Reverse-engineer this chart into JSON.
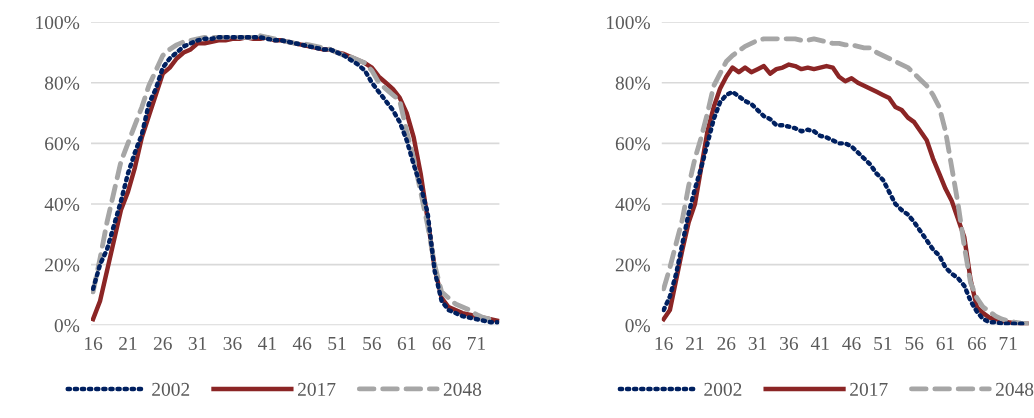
{
  "chart_data": [
    {
      "type": "line",
      "categories": [
        "16",
        null,
        null,
        null,
        null,
        "21",
        null,
        null,
        null,
        null,
        "26",
        null,
        null,
        null,
        null,
        "31",
        null,
        null,
        null,
        null,
        "36",
        null,
        null,
        null,
        null,
        "41",
        null,
        null,
        null,
        null,
        "46",
        null,
        null,
        null,
        null,
        "51",
        null,
        null,
        null,
        null,
        "56",
        null,
        null,
        null,
        null,
        "61",
        null,
        null,
        null,
        null,
        "66",
        null,
        null,
        null,
        null,
        "71",
        null,
        null,
        null
      ],
      "ylim": [
        0,
        100
      ],
      "yticks": [
        {
          "value": 0,
          "label": "0%"
        },
        {
          "value": 20,
          "label": "20%"
        },
        {
          "value": 40,
          "label": "40%"
        },
        {
          "value": 60,
          "label": "60%"
        },
        {
          "value": 80,
          "label": "80%"
        },
        {
          "value": 100,
          "label": "100%"
        }
      ],
      "grid": "y",
      "legend": "bottom",
      "series": [
        {
          "name": "2002",
          "color": "#002060",
          "line_style": "dotted",
          "values": [
            12,
            20,
            25,
            33,
            41,
            50,
            57,
            63,
            73,
            78,
            85,
            88,
            90,
            92,
            93,
            94,
            94.5,
            94.5,
            95,
            95,
            95,
            95,
            95,
            95,
            95,
            94.5,
            94,
            94,
            93.5,
            93,
            92.5,
            92,
            91.5,
            91,
            91,
            90,
            89,
            87.5,
            86,
            84,
            80,
            77,
            74,
            71,
            67,
            61,
            53,
            46,
            37,
            18,
            8,
            5,
            4,
            3,
            2.5,
            2,
            1.5,
            1,
            1
          ]
        },
        {
          "name": "2017",
          "color": "#8b2525",
          "line_style": "solid",
          "values": [
            2,
            8,
            18,
            28,
            38,
            44,
            52,
            62,
            69,
            76,
            83,
            85,
            88,
            90,
            91,
            93,
            93,
            93.5,
            94,
            94,
            94.5,
            94.5,
            95,
            94.5,
            94.5,
            95,
            94,
            94,
            93.5,
            93,
            92.5,
            92,
            91.5,
            91,
            91,
            90,
            89.5,
            88.5,
            87.5,
            86.5,
            85,
            82,
            80,
            78,
            75,
            70,
            62,
            50,
            35,
            19,
            9,
            6,
            5,
            4,
            3.5,
            3,
            2.5,
            2,
            1.5
          ]
        },
        {
          "name": "2048",
          "color": "#a6a6a6",
          "line_style": "dashed",
          "values": [
            11,
            22,
            34,
            44,
            54,
            60,
            66,
            72,
            79,
            84,
            89,
            91,
            92.5,
            93.5,
            94,
            94.5,
            95,
            95,
            95,
            95,
            95,
            95,
            95,
            95,
            95.5,
            95,
            94.5,
            94,
            93.5,
            93,
            93,
            92.5,
            92,
            91.5,
            91,
            90,
            89,
            88.5,
            87.5,
            86.5,
            84,
            80,
            78,
            76,
            74,
            64,
            55,
            44,
            33,
            20,
            11,
            9,
            7,
            6,
            5,
            3.5,
            2.5,
            2,
            1.5
          ]
        }
      ]
    },
    {
      "type": "line",
      "categories": [
        "16",
        null,
        null,
        null,
        null,
        "21",
        null,
        null,
        null,
        null,
        "26",
        null,
        null,
        null,
        null,
        "31",
        null,
        null,
        null,
        null,
        "36",
        null,
        null,
        null,
        null,
        "41",
        null,
        null,
        null,
        null,
        "46",
        null,
        null,
        null,
        null,
        "51",
        null,
        null,
        null,
        null,
        "56",
        null,
        null,
        null,
        null,
        "61",
        null,
        null,
        null,
        null,
        "66",
        null,
        null,
        null,
        null,
        "71",
        null,
        null,
        null
      ],
      "ylim": [
        0,
        100
      ],
      "yticks": [
        {
          "value": 0,
          "label": "0%"
        },
        {
          "value": 20,
          "label": "20%"
        },
        {
          "value": 40,
          "label": "40%"
        },
        {
          "value": 60,
          "label": "60%"
        },
        {
          "value": 80,
          "label": "80%"
        },
        {
          "value": 100,
          "label": "100%"
        }
      ],
      "grid": "y",
      "legend": "bottom",
      "series": [
        {
          "name": "2002",
          "color": "#002060",
          "line_style": "dotted",
          "values": [
            5,
            9.5,
            17,
            27,
            37,
            45,
            52,
            60,
            68,
            73.5,
            76,
            77,
            75.5,
            74,
            73,
            71,
            69,
            68,
            66,
            66,
            65.5,
            65,
            64,
            64.5,
            64,
            62.5,
            62,
            61,
            60,
            60,
            59,
            57,
            55,
            53,
            50,
            48,
            44,
            40,
            38,
            36.5,
            34,
            31,
            28,
            25,
            23,
            19,
            17,
            15.5,
            13,
            8,
            4.5,
            2,
            1,
            1,
            0.5,
            0.5,
            0.5,
            0.5,
            0.5
          ]
        },
        {
          "name": "2017",
          "color": "#8b2525",
          "line_style": "solid",
          "values": [
            2,
            5,
            15,
            25,
            34,
            40,
            52,
            64,
            72,
            78,
            82,
            85,
            83.5,
            85,
            83.5,
            84.5,
            85.5,
            83,
            84.5,
            85,
            86,
            85.5,
            84.5,
            85,
            84.5,
            85,
            85.5,
            85,
            82,
            80.5,
            81.5,
            80,
            79,
            78,
            77,
            76,
            75,
            72,
            71,
            68.5,
            67,
            64,
            61,
            55,
            50,
            45,
            41,
            35,
            29,
            15,
            6,
            4,
            2.5,
            2,
            1.5,
            1,
            0.7,
            0.5,
            0.5
          ]
        },
        {
          "name": "2048",
          "color": "#a6a6a6",
          "line_style": "dashed",
          "values": [
            12,
            19,
            27,
            35,
            46,
            55,
            62,
            70,
            79,
            83,
            87,
            89,
            90.5,
            92,
            93,
            94,
            94.5,
            94.5,
            94.5,
            94.5,
            94.5,
            94.5,
            94,
            94,
            94.5,
            94,
            93.5,
            93,
            93,
            92.5,
            92.5,
            92,
            91.5,
            91.5,
            90,
            89,
            88,
            87,
            86,
            85,
            83,
            81,
            79,
            76,
            72,
            64,
            52,
            40,
            26,
            14,
            9,
            6,
            4.5,
            3,
            2,
            1.5,
            1,
            0.7,
            0.5
          ]
        }
      ]
    }
  ]
}
